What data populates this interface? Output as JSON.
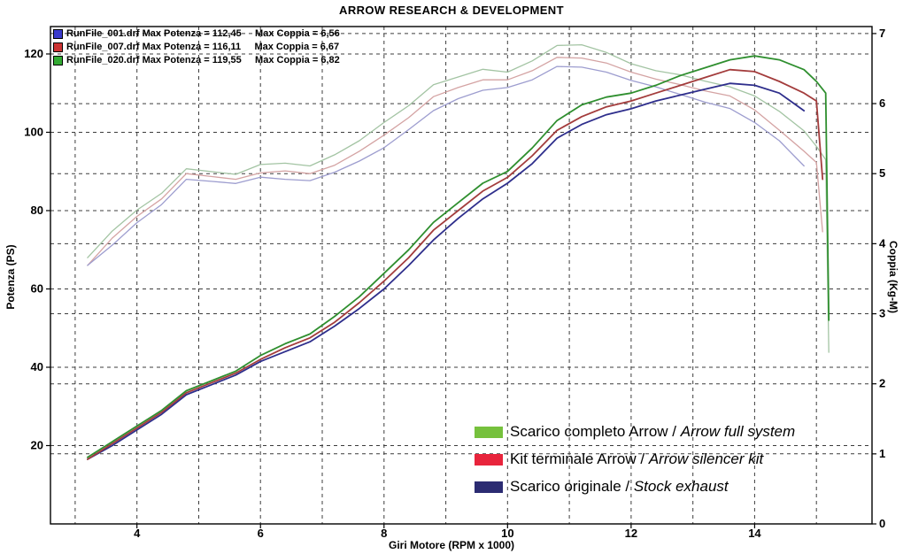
{
  "title": "ARROW RESEARCH & DEVELOPMENT",
  "runs_legend": [
    {
      "text": "RunFile_001.drf Max Potenza = 112,45     Max Coppia = 6,56",
      "color": "#3a3acc"
    },
    {
      "text": "RunFile_007.drf Max Potenza = 116,11     Max Coppia = 6,67",
      "color": "#cc3333"
    },
    {
      "text": "RunFile_020.drf Max Potenza = 119,55     Max Coppia = 6,82",
      "color": "#33aa33"
    }
  ],
  "exhaust_legend": [
    {
      "label": "Scarico completo Arrow / ",
      "label_italic": "Arrow full system",
      "color": "#76c13d"
    },
    {
      "label": "Kit terminale Arrow / ",
      "label_italic": "Arrow silencer kit",
      "color": "#e8243c"
    },
    {
      "label": "Scarico originale / ",
      "label_italic": "Stock exhaust",
      "color": "#2b2b72"
    }
  ],
  "chart_data": {
    "type": "line",
    "title": "ARROW RESEARCH & DEVELOPMENT",
    "xlabel": "Giri Motore (RPM x 1000)",
    "ylabel_left": "Potenza (PS)",
    "ylabel_right": "Coppia (Kg-M)",
    "xlim": [
      2.6,
      15.9
    ],
    "ylim_left": [
      0,
      127
    ],
    "ylim_right": [
      0,
      7.1
    ],
    "x_ticks": [
      4,
      6,
      8,
      10,
      12,
      14
    ],
    "x_grid": [
      3,
      4,
      5,
      6,
      7,
      8,
      9,
      10,
      11,
      12,
      13,
      14,
      15
    ],
    "y_ticks_left": [
      20,
      40,
      60,
      80,
      100,
      120
    ],
    "y_ticks_right": [
      0,
      1,
      2,
      3,
      4,
      5,
      6,
      7
    ],
    "grid": true,
    "legend_position": "top-left and bottom-right",
    "series": [
      {
        "name": "coppia-runfile-020-arrow-full-system",
        "axis": "right",
        "color": "#a3c4a3",
        "x": [
          3.2,
          3.6,
          4,
          4.4,
          4.8,
          5.2,
          5.6,
          6,
          6.4,
          6.8,
          7.2,
          7.6,
          8,
          8.4,
          8.8,
          9.2,
          9.6,
          10,
          10.4,
          10.8,
          11.2,
          11.6,
          12,
          12.4,
          12.8,
          13.2,
          13.6,
          14,
          14.4,
          14.8,
          15,
          15.15,
          15.2
        ],
        "y": [
          3.8,
          4.18,
          4.48,
          4.72,
          5.07,
          5.03,
          4.99,
          5.13,
          5.15,
          5.11,
          5.27,
          5.47,
          5.73,
          5.97,
          6.27,
          6.38,
          6.49,
          6.45,
          6.61,
          6.83,
          6.84,
          6.73,
          6.57,
          6.47,
          6.41,
          6.32,
          6.24,
          6.11,
          5.89,
          5.61,
          5.39,
          5.2,
          2.45
        ]
      },
      {
        "name": "coppia-runfile-007-arrow-silencer-kit",
        "axis": "right",
        "color": "#d4a3a3",
        "x": [
          3.2,
          3.6,
          4,
          4.4,
          4.8,
          5.2,
          5.6,
          6,
          6.4,
          6.8,
          7.2,
          7.6,
          8,
          8.4,
          8.8,
          9.2,
          9.6,
          10,
          10.4,
          10.8,
          11.2,
          11.6,
          12,
          12.4,
          12.8,
          13.2,
          13.6,
          14,
          14.4,
          14.8,
          15,
          15.1
        ],
        "y": [
          3.69,
          4.08,
          4.39,
          4.64,
          5,
          4.96,
          4.92,
          5.01,
          5.04,
          5,
          5.12,
          5.32,
          5.55,
          5.8,
          6.1,
          6.23,
          6.34,
          6.34,
          6.47,
          6.66,
          6.65,
          6.58,
          6.45,
          6.35,
          6.27,
          6.18,
          6.11,
          5.91,
          5.62,
          5.32,
          5.16,
          4.17
        ]
      },
      {
        "name": "coppia-runfile-001-stock-exhaust",
        "axis": "right",
        "color": "#9d9dcf",
        "x": [
          3.2,
          3.6,
          4,
          4.4,
          4.8,
          5.2,
          5.6,
          6,
          6.4,
          6.8,
          7.2,
          7.6,
          8,
          8.4,
          8.8,
          9.2,
          9.6,
          10,
          10.4,
          10.8,
          11.2,
          11.6,
          12,
          12.4,
          12.8,
          13.2,
          13.6,
          14,
          14.4,
          14.8
        ],
        "y": [
          3.69,
          3.98,
          4.3,
          4.56,
          4.92,
          4.89,
          4.86,
          4.95,
          4.92,
          4.9,
          5.02,
          5.18,
          5.37,
          5.63,
          5.9,
          6.07,
          6.19,
          6.23,
          6.34,
          6.53,
          6.52,
          6.45,
          6.33,
          6.24,
          6.13,
          6.02,
          5.93,
          5.73,
          5.47,
          5.11
        ]
      },
      {
        "name": "potenza-runfile-001-stock-exhaust",
        "axis": "left",
        "color": "#2e2e8c",
        "x": [
          3.2,
          3.6,
          4,
          4.4,
          4.8,
          5.2,
          5.6,
          6,
          6.4,
          6.8,
          7.2,
          7.6,
          8,
          8.4,
          8.8,
          9.2,
          9.6,
          10,
          10.4,
          10.8,
          11.2,
          11.6,
          12,
          12.4,
          12.8,
          13.2,
          13.6,
          14,
          14.4,
          14.8
        ],
        "y": [
          16.5,
          20,
          24,
          28,
          33,
          35.5,
          38,
          41.5,
          44,
          46.5,
          50.5,
          55,
          60,
          66,
          72.5,
          78,
          83,
          87,
          92,
          98.5,
          102,
          104.5,
          106,
          108,
          109.5,
          111,
          112.5,
          112,
          110,
          105.5
        ]
      },
      {
        "name": "potenza-runfile-007-arrow-silencer-kit",
        "axis": "left",
        "color": "#a33c3c",
        "x": [
          3.2,
          3.6,
          4,
          4.4,
          4.8,
          5.2,
          5.6,
          6,
          6.4,
          6.8,
          7.2,
          7.6,
          8,
          8.4,
          8.8,
          9.2,
          9.6,
          10,
          10.4,
          10.8,
          11.2,
          11.6,
          12,
          12.4,
          12.8,
          13.2,
          13.6,
          14,
          14.4,
          14.8,
          15,
          15.1
        ],
        "y": [
          16.5,
          20.5,
          24.5,
          28.5,
          33.5,
          36,
          38.5,
          42,
          45,
          47.5,
          51.5,
          56.5,
          62,
          68,
          75,
          80,
          85,
          88.5,
          94,
          100.5,
          104,
          106.5,
          108,
          110,
          112,
          114,
          116,
          115.5,
          113,
          110,
          108,
          88
        ]
      },
      {
        "name": "potenza-runfile-020-arrow-full-system",
        "axis": "left",
        "color": "#2f8f2f",
        "x": [
          3.2,
          3.6,
          4,
          4.4,
          4.8,
          5.2,
          5.6,
          6,
          6.4,
          6.8,
          7.2,
          7.6,
          8,
          8.4,
          8.8,
          9.2,
          9.6,
          10,
          10.4,
          10.8,
          11.2,
          11.6,
          12,
          12.4,
          12.8,
          13.2,
          13.6,
          14,
          14.4,
          14.8,
          15,
          15.15,
          15.2
        ],
        "y": [
          17,
          21,
          25,
          29,
          34,
          36.5,
          39,
          43,
          46,
          48.5,
          53,
          58,
          64,
          70,
          77,
          82,
          87,
          90,
          96,
          103,
          107,
          109,
          110,
          112,
          114.5,
          116.5,
          118.5,
          119.5,
          118.5,
          116,
          113,
          110,
          52
        ]
      }
    ]
  }
}
